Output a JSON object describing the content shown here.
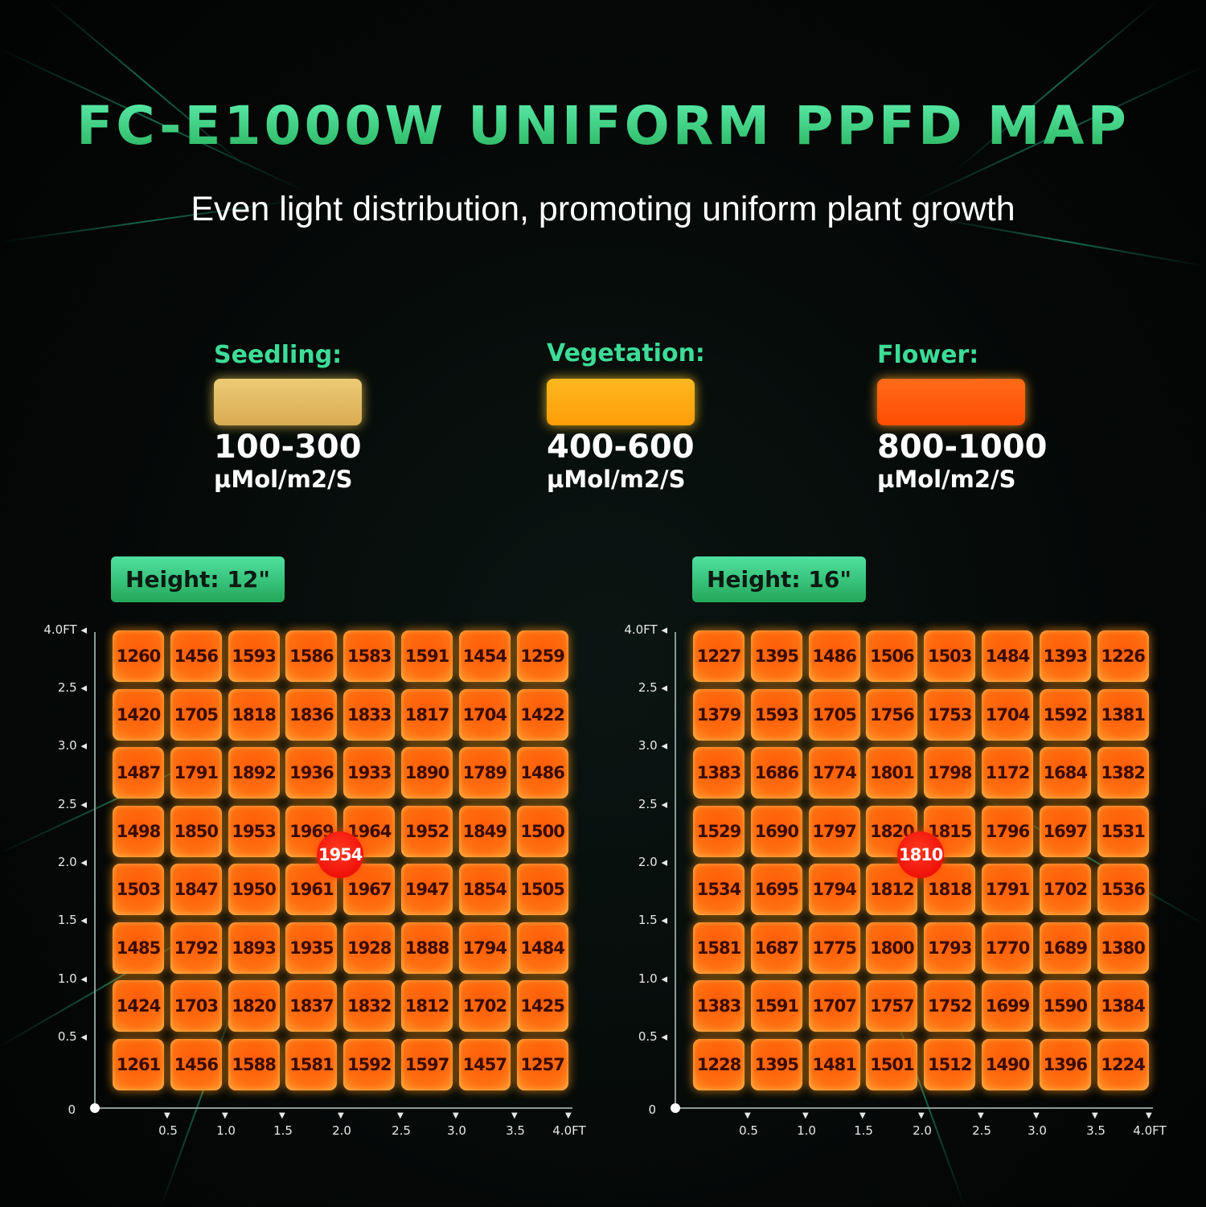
{
  "header": {
    "title": "FC-E1000W UNIFORM PPFD MAP",
    "subtitle": "Even light distribution, promoting uniform plant growth"
  },
  "legend": [
    {
      "label": "Seedling:",
      "range": "100-300",
      "unit": "µMol/m2/S",
      "color": "#e2b862"
    },
    {
      "label": "Vegetation:",
      "range": "400-600",
      "unit": "µMol/m2/S",
      "color": "#ffab12"
    },
    {
      "label": "Flower:",
      "range": "800-1000",
      "unit": "µMol/m2/S",
      "color": "#ff5a0c"
    }
  ],
  "chart_data": [
    {
      "type": "heatmap",
      "title": "Height: 12\"",
      "y_tick_labels": [
        "4.0FT",
        "2.5",
        "3.0",
        "2.5",
        "2.0",
        "1.5",
        "1.0",
        "0.5",
        "0"
      ],
      "x_tick_labels": [
        "0.5",
        "1.0",
        "1.5",
        "2.0",
        "2.5",
        "3.0",
        "3.5",
        "4.0FT"
      ],
      "center_value": "1954",
      "values": [
        [
          1260,
          1456,
          1593,
          1586,
          1583,
          1591,
          1454,
          1259
        ],
        [
          1420,
          1705,
          1818,
          1836,
          1833,
          1817,
          1704,
          1422
        ],
        [
          1487,
          1791,
          1892,
          1936,
          1933,
          1890,
          1789,
          1486
        ],
        [
          1498,
          1850,
          1953,
          1969,
          1964,
          1952,
          1849,
          1500
        ],
        [
          1503,
          1847,
          1950,
          1961,
          1967,
          1947,
          1854,
          1505
        ],
        [
          1485,
          1792,
          1893,
          1935,
          1928,
          1888,
          1794,
          1484
        ],
        [
          1424,
          1703,
          1820,
          1837,
          1832,
          1812,
          1702,
          1425
        ],
        [
          1261,
          1456,
          1588,
          1581,
          1592,
          1597,
          1457,
          1257
        ]
      ]
    },
    {
      "type": "heatmap",
      "title": "Height: 16\"",
      "y_tick_labels": [
        "4.0FT",
        "2.5",
        "3.0",
        "2.5",
        "2.0",
        "1.5",
        "1.0",
        "0.5",
        "0"
      ],
      "x_tick_labels": [
        "0.5",
        "1.0",
        "1.5",
        "2.0",
        "2.5",
        "3.0",
        "3.5",
        "4.0FT"
      ],
      "center_value": "1810",
      "values": [
        [
          1227,
          1395,
          1486,
          1506,
          1503,
          1484,
          1393,
          1226
        ],
        [
          1379,
          1593,
          1705,
          1756,
          1753,
          1704,
          1592,
          1381
        ],
        [
          1383,
          1686,
          1774,
          1801,
          1798,
          1172,
          1684,
          1382
        ],
        [
          1529,
          1690,
          1797,
          1820,
          1815,
          1796,
          1697,
          1531
        ],
        [
          1534,
          1695,
          1794,
          1812,
          1818,
          1791,
          1702,
          1536
        ],
        [
          1581,
          1687,
          1775,
          1800,
          1793,
          1770,
          1689,
          1380
        ],
        [
          1383,
          1591,
          1707,
          1757,
          1752,
          1699,
          1590,
          1384
        ],
        [
          1228,
          1395,
          1481,
          1501,
          1512,
          1490,
          1396,
          1224
        ]
      ]
    }
  ]
}
